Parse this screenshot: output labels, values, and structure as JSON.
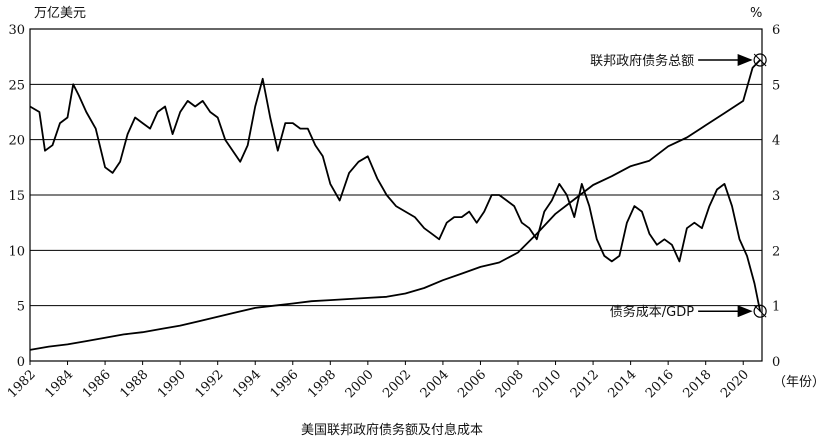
{
  "chart_data": {
    "type": "line",
    "title": "",
    "caption": "美国联邦政府债务额及付息成本",
    "left_axis_unit": "万亿美元",
    "right_axis_unit": "%",
    "x_axis_unit": "（年份）",
    "xlim": [
      1982,
      2021
    ],
    "ylim_left": [
      0,
      30
    ],
    "ylim_right": [
      0,
      6
    ],
    "x_ticks": [
      "1982",
      "1984",
      "1986",
      "1988",
      "1990",
      "1992",
      "1994",
      "1996",
      "1998",
      "2000",
      "2002",
      "2004",
      "2006",
      "2008",
      "2010",
      "2012",
      "2014",
      "2016",
      "2018",
      "2020"
    ],
    "y_ticks_left": [
      "0",
      "5",
      "10",
      "15",
      "20",
      "25",
      "30"
    ],
    "y_ticks_right": [
      "0",
      "1",
      "2",
      "3",
      "4",
      "5",
      "6"
    ],
    "grid": "horizontal",
    "series": [
      {
        "name": "联邦政府债务总额",
        "axis": "left",
        "color": "#000000",
        "x": [
          1982,
          1983,
          1984,
          1985,
          1986,
          1987,
          1988,
          1989,
          1990,
          1991,
          1992,
          1993,
          1994,
          1995,
          1996,
          1997,
          1998,
          1999,
          2000,
          2001,
          2002,
          2003,
          2004,
          2005,
          2006,
          2007,
          2008,
          2009,
          2010,
          2011,
          2012,
          2013,
          2014,
          2015,
          2016,
          2017,
          2018,
          2019,
          2020,
          2020.5,
          2020.9
        ],
        "values": [
          1.0,
          1.3,
          1.5,
          1.8,
          2.1,
          2.4,
          2.6,
          2.9,
          3.2,
          3.6,
          4.0,
          4.4,
          4.8,
          5.0,
          5.2,
          5.4,
          5.5,
          5.6,
          5.7,
          5.8,
          6.1,
          6.6,
          7.3,
          7.9,
          8.5,
          8.9,
          9.8,
          11.5,
          13.3,
          14.6,
          15.9,
          16.7,
          17.6,
          18.1,
          19.4,
          20.2,
          21.3,
          22.4,
          23.5,
          26.5,
          27.2
        ]
      },
      {
        "name": "债务成本/GDP",
        "axis": "right",
        "color": "#000000",
        "x": [
          1982,
          1982.5,
          1982.8,
          1983.2,
          1983.6,
          1984.0,
          1984.3,
          1984.6,
          1985.0,
          1985.5,
          1986.0,
          1986.4,
          1986.8,
          1987.2,
          1987.6,
          1988.0,
          1988.4,
          1988.8,
          1989.2,
          1989.6,
          1990.0,
          1990.4,
          1990.8,
          1991.2,
          1991.6,
          1992.0,
          1992.4,
          1992.8,
          1993.2,
          1993.6,
          1994.0,
          1994.4,
          1994.8,
          1995.2,
          1995.6,
          1996.0,
          1996.4,
          1996.8,
          1997.2,
          1997.6,
          1998.0,
          1998.5,
          1999.0,
          1999.5,
          2000.0,
          2000.5,
          2001.0,
          2001.5,
          2002.0,
          2002.5,
          2003.0,
          2003.4,
          2003.8,
          2004.2,
          2004.6,
          2005.0,
          2005.4,
          2005.8,
          2006.2,
          2006.6,
          2007.0,
          2007.4,
          2007.8,
          2008.2,
          2008.6,
          2009.0,
          2009.4,
          2009.8,
          2010.2,
          2010.6,
          2011.0,
          2011.4,
          2011.8,
          2012.2,
          2012.6,
          2013.0,
          2013.4,
          2013.8,
          2014.2,
          2014.6,
          2015.0,
          2015.4,
          2015.8,
          2016.2,
          2016.6,
          2017.0,
          2017.4,
          2017.8,
          2018.2,
          2018.6,
          2019.0,
          2019.4,
          2019.8,
          2020.2,
          2020.6,
          2020.9
        ],
        "values": [
          4.6,
          4.5,
          3.8,
          3.9,
          4.3,
          4.4,
          5.0,
          4.8,
          4.5,
          4.2,
          3.5,
          3.4,
          3.6,
          4.1,
          4.4,
          4.3,
          4.2,
          4.5,
          4.6,
          4.1,
          4.5,
          4.7,
          4.6,
          4.7,
          4.5,
          4.4,
          4.0,
          3.8,
          3.6,
          3.9,
          4.6,
          5.1,
          4.4,
          3.8,
          4.3,
          4.3,
          4.2,
          4.2,
          3.9,
          3.7,
          3.2,
          2.9,
          3.4,
          3.6,
          3.7,
          3.3,
          3.0,
          2.8,
          2.7,
          2.6,
          2.4,
          2.3,
          2.2,
          2.5,
          2.6,
          2.6,
          2.7,
          2.5,
          2.7,
          3.0,
          3.0,
          2.9,
          2.8,
          2.5,
          2.4,
          2.2,
          2.7,
          2.9,
          3.2,
          3.0,
          2.6,
          3.2,
          2.8,
          2.2,
          1.9,
          1.8,
          1.9,
          2.5,
          2.8,
          2.7,
          2.3,
          2.1,
          2.2,
          2.1,
          1.8,
          2.4,
          2.5,
          2.4,
          2.8,
          3.1,
          3.2,
          2.8,
          2.2,
          1.9,
          1.4,
          0.9
        ]
      }
    ],
    "annotations": [
      {
        "label": "联邦政府债务总额",
        "target_x": 2020.9,
        "target_y": 27.2,
        "axis": "left",
        "marker": "circle"
      },
      {
        "label": "债务成本/GDP",
        "target_x": 2020.9,
        "target_y": 0.9,
        "axis": "right",
        "marker": "circle"
      }
    ]
  }
}
